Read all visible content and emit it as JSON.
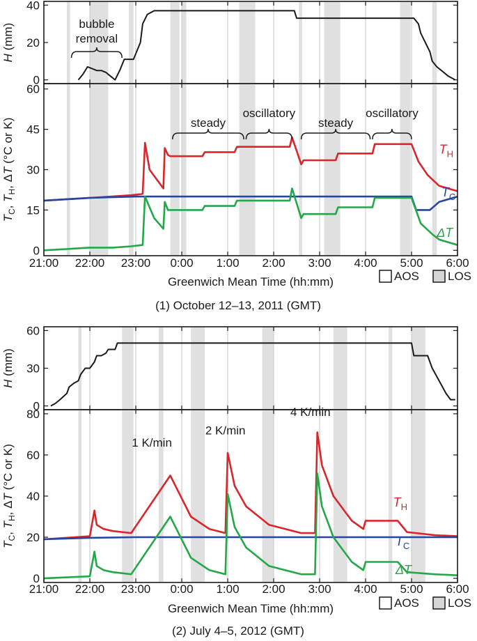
{
  "figure": {
    "x_ticks": [
      "21:00",
      "22:00",
      "23:00",
      "0:00",
      "1:00",
      "2:00",
      "3:00",
      "4:00",
      "5:00",
      "6:00"
    ],
    "xlabel": "Greenwich Mean Time (hh:mm)",
    "legend": {
      "aos": "AOS",
      "los": "LOS"
    },
    "colors": {
      "TH": "#d9262b",
      "TC": "#2346a0",
      "DT": "#22a848",
      "H": "#1a1a1a",
      "LOS": "#d6d6d6",
      "AOS_light": "#ededed"
    }
  },
  "chart_data": [
    {
      "type": "line",
      "caption": "(1) October 12–13, 2011 (GMT)",
      "panels": [
        {
          "id": "H",
          "ylabel": "H (mm)",
          "ylim": [
            -2,
            42
          ],
          "yticks": [
            0,
            20,
            40
          ],
          "series": [
            {
              "name": "H",
              "x": [
                21.75,
                21.85,
                21.95,
                22.05,
                22.15,
                22.25,
                22.35,
                22.45,
                22.55,
                22.65,
                22.75,
                22.85,
                22.95,
                23.1,
                23.15,
                23.25,
                23.4,
                23.45,
                2.45,
                2.5,
                5.05,
                5.15,
                5.2,
                5.3,
                5.4,
                5.45,
                5.55,
                5.65,
                5.8,
                5.95
              ],
              "y": [
                0,
                3,
                7,
                6,
                5,
                5,
                4,
                2,
                0,
                5,
                11,
                11,
                11,
                20,
                30,
                35,
                37,
                37,
                37,
                33,
                33,
                30,
                25,
                20,
                15,
                10,
                7,
                5,
                2,
                0
              ]
            }
          ],
          "los_bands": [
            [
              21.5,
              21.57
            ],
            [
              22.0,
              22.4
            ],
            [
              22.85,
              22.95
            ],
            [
              23.75,
              23.95
            ],
            [
              0.0,
              0.1
            ],
            [
              1.25,
              1.6
            ],
            [
              2.55,
              2.62
            ],
            [
              3.1,
              3.45
            ],
            [
              4.75,
              4.98
            ],
            [
              5.45,
              5.55
            ]
          ],
          "annotations": [
            {
              "label_lines": [
                "bubble",
                "removal"
              ],
              "x": 22.15,
              "brace": [
                21.6,
                22.7
              ]
            }
          ]
        },
        {
          "id": "T",
          "ylabel": "TC, TH, ΔT (°C or K)",
          "ylim": [
            -2,
            62
          ],
          "yticks": [
            0,
            15,
            30,
            45,
            60
          ],
          "series": [
            {
              "name": "TH",
              "label": "TH",
              "x": [
                21.0,
                22.0,
                22.9,
                23.15,
                23.2,
                23.3,
                23.6,
                23.63,
                23.7,
                23.75,
                24.0,
                24.45,
                24.5,
                25.15,
                25.2,
                26.35,
                26.4,
                26.6,
                26.65,
                27.35,
                27.4,
                28.15,
                28.2,
                29.0,
                29.15,
                29.35,
                29.6,
                30.0
              ],
              "y": [
                18.5,
                19.5,
                20.5,
                21,
                40,
                30,
                23,
                38,
                35.5,
                35,
                35,
                35,
                36.5,
                36.5,
                38.5,
                38.5,
                42,
                32,
                33.5,
                33.5,
                36,
                36,
                39.5,
                39.5,
                33,
                28,
                24,
                22
              ]
            },
            {
              "name": "TC",
              "label": "TC",
              "x": [
                21.0,
                22.0,
                23.0,
                24.0,
                25.0,
                26.0,
                27.0,
                28.0,
                29.0,
                29.1,
                29.4,
                29.6,
                30.0
              ],
              "y": [
                18.5,
                19.5,
                20,
                20,
                20,
                20,
                20,
                20,
                20,
                15,
                15,
                18,
                20
              ]
            },
            {
              "name": "DT",
              "label": "ΔT",
              "x": [
                21.0,
                21.5,
                22.0,
                22.5,
                22.9,
                23.15,
                23.2,
                23.4,
                23.6,
                23.63,
                23.7,
                24.45,
                24.5,
                25.15,
                25.2,
                26.35,
                26.4,
                26.6,
                26.65,
                27.35,
                27.4,
                28.15,
                28.2,
                29.0,
                29.2,
                29.45,
                29.6,
                30.0
              ],
              "y": [
                0,
                0.5,
                1,
                1,
                1.5,
                2,
                20,
                12,
                8,
                18,
                15,
                15,
                16.5,
                16.5,
                18.5,
                18.5,
                23,
                12,
                13.5,
                13.5,
                16,
                16,
                19.5,
                19.5,
                10,
                6,
                4,
                2
              ]
            }
          ],
          "los_bands": [
            [
              21.5,
              21.57
            ],
            [
              22.0,
              22.4
            ],
            [
              22.85,
              22.95
            ],
            [
              23.75,
              23.95
            ],
            [
              0.0,
              0.1
            ],
            [
              1.25,
              1.6
            ],
            [
              2.55,
              2.62
            ],
            [
              3.1,
              3.45
            ],
            [
              4.75,
              4.98
            ],
            [
              5.45,
              5.55
            ]
          ],
          "annotations": [
            {
              "label": "steady",
              "x": 24.6,
              "brace": [
                23.8,
                25.35
              ]
            },
            {
              "label": "oscillatory",
              "x": 25.9,
              "brace": [
                25.4,
                26.4
              ]
            },
            {
              "label": "steady",
              "x": 27.45,
              "brace": [
                26.6,
                28.1
              ]
            },
            {
              "label": "oscillatory",
              "x": 28.6,
              "brace": [
                28.15,
                29.0
              ]
            }
          ],
          "series_labels": [
            {
              "series": "TH",
              "text": "T",
              "sub": "H",
              "x": 29.6,
              "y": 36
            },
            {
              "series": "TC",
              "text": "T",
              "sub": "C",
              "x": 29.65,
              "y": 20
            },
            {
              "series": "DT",
              "text": "ΔT",
              "x": 29.55,
              "y": 5
            }
          ]
        }
      ]
    },
    {
      "type": "line",
      "caption": "(2) July 4–5, 2012 (GMT)",
      "panels": [
        {
          "id": "H",
          "ylabel": "H (mm)",
          "ylim": [
            -3,
            63
          ],
          "yticks": [
            0,
            30,
            60
          ],
          "series": [
            {
              "name": "H",
              "x": [
                21.15,
                21.25,
                21.35,
                21.5,
                21.55,
                21.65,
                21.75,
                21.8,
                21.9,
                22.0,
                22.1,
                22.15,
                22.25,
                22.35,
                22.4,
                22.45,
                22.55,
                22.6,
                22.65,
                29.0,
                29.05,
                29.35,
                29.45,
                29.6,
                29.75,
                29.85,
                29.95
              ],
              "y": [
                0,
                2,
                5,
                10,
                15,
                18,
                20,
                25,
                30,
                30,
                35,
                40,
                40,
                42,
                45,
                45,
                45,
                50,
                50,
                50,
                40,
                40,
                30,
                20,
                10,
                5,
                5
              ]
            }
          ],
          "los_bands": [
            [
              21.75,
              21.82
            ],
            [
              22.7,
              22.95
            ],
            [
              23.5,
              23.6
            ],
            [
              24.2,
              24.5
            ],
            [
              25.75,
              26.0
            ],
            [
              27.3,
              27.6
            ],
            [
              28.5,
              28.58
            ],
            [
              29.0,
              29.3
            ]
          ],
          "annotations": []
        },
        {
          "id": "T",
          "ylabel": "TC, TH, ΔT (°C or K)",
          "ylim": [
            -2,
            82
          ],
          "yticks": [
            0,
            20,
            40,
            60,
            80
          ],
          "series": [
            {
              "name": "TH",
              "label": "TH",
              "x": [
                21.0,
                22.0,
                22.1,
                22.15,
                22.3,
                22.5,
                22.9,
                23.75,
                24.2,
                24.6,
                24.95,
                25.0,
                25.15,
                25.4,
                25.9,
                26.6,
                26.9,
                26.95,
                27.05,
                27.3,
                27.7,
                27.95,
                28.0,
                28.7,
                28.9,
                29.5,
                30.0
              ],
              "y": [
                19,
                20.5,
                33,
                26,
                24,
                23,
                22,
                50,
                30,
                24,
                22,
                61,
                45,
                35,
                26,
                22,
                22,
                71,
                55,
                40,
                28,
                24,
                28,
                28,
                22.5,
                21,
                20.5
              ]
            },
            {
              "name": "TC",
              "label": "TC",
              "x": [
                21.0,
                22.0,
                23.0,
                24.0,
                25.0,
                26.0,
                27.0,
                28.0,
                29.0,
                30.0
              ],
              "y": [
                19,
                19.7,
                20,
                20,
                20,
                20,
                20,
                20,
                20,
                20
              ]
            },
            {
              "name": "DT",
              "label": "ΔT",
              "x": [
                21.0,
                22.0,
                22.1,
                22.15,
                22.3,
                22.5,
                22.9,
                23.75,
                24.2,
                24.6,
                24.95,
                25.0,
                25.15,
                25.4,
                25.9,
                26.6,
                26.9,
                26.95,
                27.05,
                27.3,
                27.7,
                27.95,
                28.0,
                28.7,
                28.9,
                29.5,
                30.0
              ],
              "y": [
                0,
                1,
                13,
                6,
                4,
                3,
                2,
                30,
                10,
                4,
                2,
                41,
                25,
                15,
                6,
                2,
                2,
                51,
                35,
                20,
                8,
                4,
                8,
                8,
                3,
                2,
                1.5
              ]
            }
          ],
          "los_bands": [
            [
              21.75,
              21.82
            ],
            [
              22.7,
              22.95
            ],
            [
              23.5,
              23.6
            ],
            [
              24.2,
              24.5
            ],
            [
              25.75,
              26.0
            ],
            [
              27.3,
              27.6
            ],
            [
              28.5,
              28.58
            ],
            [
              29.0,
              29.3
            ]
          ],
          "annotations": [
            {
              "label": "1 K/min",
              "x": 23.35,
              "y": 64
            },
            {
              "label": "2 K/min",
              "x": 24.95,
              "y": 70
            },
            {
              "label": "4 K/min",
              "x": 26.8,
              "y": 79
            }
          ],
          "series_labels": [
            {
              "series": "TH",
              "text": "T",
              "sub": "H",
              "x": 28.6,
              "y": 35
            },
            {
              "series": "TC",
              "text": "T",
              "sub": "C",
              "x": 28.65,
              "y": 16
            },
            {
              "series": "DT",
              "text": "ΔT",
              "x": 28.65,
              "y": 2
            }
          ]
        }
      ]
    }
  ]
}
